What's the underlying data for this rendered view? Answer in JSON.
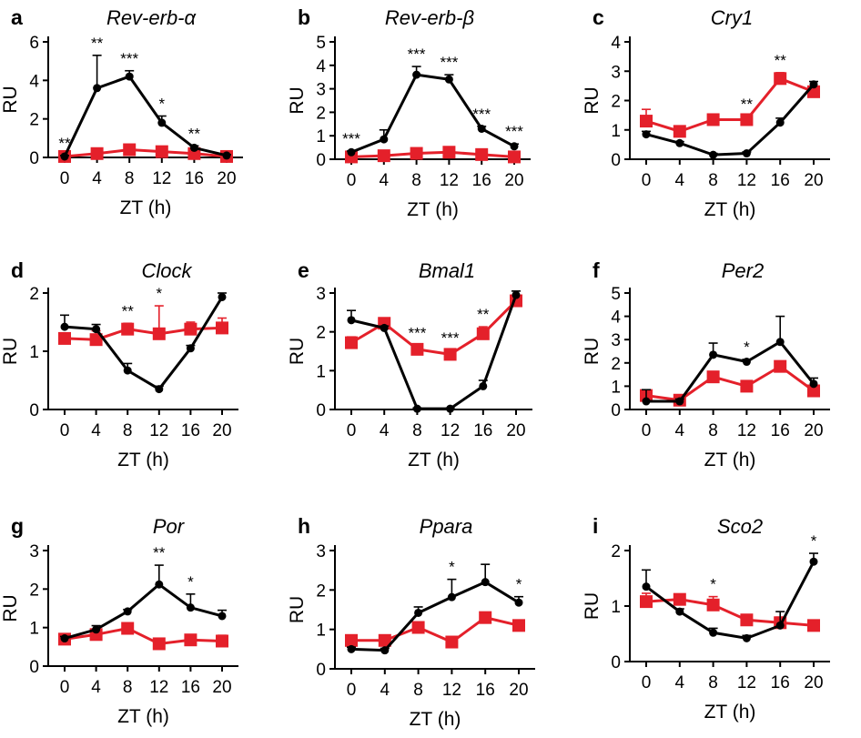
{
  "colors": {
    "ko": "#e4202a",
    "wt": "#000000"
  },
  "chart_data": [
    {
      "type": "line",
      "letter": "a",
      "title": "Rev-erb-α",
      "xlabel": "ZT (h)",
      "ylabel": "RU",
      "x": [
        0,
        4,
        8,
        12,
        16,
        20
      ],
      "ylim": [
        0,
        6
      ],
      "yticks": [
        0,
        2,
        4,
        6
      ],
      "series": [
        {
          "values": [
            0.05,
            3.6,
            4.2,
            1.8,
            0.5,
            0.1
          ],
          "errors": [
            0.05,
            1.7,
            0.3,
            0.35,
            0.1,
            0.05
          ]
        },
        {
          "values": [
            0.05,
            0.2,
            0.4,
            0.3,
            0.2,
            0.05
          ],
          "errors": [
            0.05,
            0.05,
            0.05,
            0.05,
            0.05,
            0.03
          ]
        }
      ],
      "significance": [
        "**",
        "**",
        "***",
        "*",
        "**",
        ""
      ]
    },
    {
      "type": "line",
      "letter": "b",
      "title": "Rev-erb-β",
      "xlabel": "ZT (h)",
      "ylabel": "RU",
      "x": [
        0,
        4,
        8,
        12,
        16,
        20
      ],
      "ylim": [
        0,
        5
      ],
      "yticks": [
        0,
        1,
        2,
        3,
        4,
        5
      ],
      "series": [
        {
          "values": [
            0.3,
            0.85,
            3.6,
            3.4,
            1.3,
            0.55
          ],
          "errors": [
            0.05,
            0.4,
            0.35,
            0.2,
            0.1,
            0.1
          ]
        },
        {
          "values": [
            0.1,
            0.15,
            0.25,
            0.3,
            0.2,
            0.1
          ],
          "errors": [
            0.05,
            0.05,
            0.05,
            0.05,
            0.05,
            0.05
          ]
        }
      ],
      "significance": [
        "***",
        "",
        "***",
        "***",
        "***",
        "***"
      ]
    },
    {
      "type": "line",
      "letter": "c",
      "title": "Cry1",
      "xlabel": "ZT (h)",
      "ylabel": "RU",
      "x": [
        0,
        4,
        8,
        12,
        16,
        20
      ],
      "ylim": [
        0,
        4
      ],
      "yticks": [
        0,
        1,
        2,
        3,
        4
      ],
      "series": [
        {
          "values": [
            0.85,
            0.55,
            0.15,
            0.2,
            1.25,
            2.55
          ],
          "errors": [
            0.1,
            0.05,
            0.05,
            0.05,
            0.15,
            0.1
          ]
        },
        {
          "values": [
            1.3,
            0.95,
            1.35,
            1.35,
            2.75,
            2.3
          ],
          "errors": [
            0.4,
            0.1,
            0.1,
            0.1,
            0.2,
            0.1
          ]
        }
      ],
      "significance": [
        "",
        "",
        "",
        "**",
        "**",
        ""
      ]
    },
    {
      "type": "line",
      "letter": "d",
      "title": "Clock",
      "xlabel": "ZT (h)",
      "ylabel": "RU",
      "x": [
        0,
        4,
        8,
        12,
        16,
        20
      ],
      "ylim": [
        0,
        2
      ],
      "yticks": [
        0,
        1,
        2
      ],
      "series": [
        {
          "values": [
            1.42,
            1.38,
            0.67,
            0.35,
            1.05,
            1.93
          ],
          "errors": [
            0.2,
            0.08,
            0.12,
            0.05,
            0.05,
            0.07
          ]
        },
        {
          "values": [
            1.22,
            1.2,
            1.38,
            1.3,
            1.38,
            1.4
          ],
          "errors": [
            0.08,
            0.15,
            0.1,
            0.48,
            0.12,
            0.17
          ]
        }
      ],
      "significance": [
        "",
        "",
        "**",
        "*",
        "",
        ""
      ]
    },
    {
      "type": "line",
      "letter": "e",
      "title": "Bmal1",
      "xlabel": "ZT (h)",
      "ylabel": "RU",
      "x": [
        0,
        4,
        8,
        12,
        16,
        20
      ],
      "ylim": [
        0,
        3
      ],
      "yticks": [
        0,
        1,
        2,
        3
      ],
      "series": [
        {
          "values": [
            2.3,
            2.1,
            0.02,
            0.02,
            0.6,
            2.95
          ],
          "errors": [
            0.25,
            0.05,
            0.02,
            0.02,
            0.15,
            0.1
          ]
        },
        {
          "values": [
            1.72,
            2.22,
            1.55,
            1.42,
            1.95,
            2.8
          ],
          "errors": [
            0.15,
            0.1,
            0.1,
            0.1,
            0.18,
            0.1
          ]
        }
      ],
      "significance": [
        "",
        "",
        "***",
        "***",
        "**",
        ""
      ]
    },
    {
      "type": "line",
      "letter": "f",
      "title": "Per2",
      "xlabel": "ZT (h)",
      "ylabel": "RU",
      "x": [
        0,
        4,
        8,
        12,
        16,
        20
      ],
      "ylim": [
        0,
        5
      ],
      "yticks": [
        0,
        1,
        2,
        3,
        4,
        5
      ],
      "series": [
        {
          "values": [
            0.35,
            0.35,
            2.35,
            2.05,
            2.9,
            1.1
          ],
          "errors": [
            0.5,
            0.1,
            0.5,
            0.1,
            1.1,
            0.25
          ]
        },
        {
          "values": [
            0.6,
            0.4,
            1.4,
            1.0,
            1.85,
            0.8
          ],
          "errors": [
            0.15,
            0.1,
            0.1,
            0.1,
            0.1,
            0.1
          ]
        }
      ],
      "significance": [
        "",
        "",
        "",
        "*",
        "",
        ""
      ]
    },
    {
      "type": "line",
      "letter": "g",
      "title": "Por",
      "xlabel": "ZT (h)",
      "ylabel": "RU",
      "x": [
        0,
        4,
        8,
        12,
        16,
        20
      ],
      "ylim": [
        0,
        3
      ],
      "yticks": [
        0,
        1,
        2,
        3
      ],
      "series": [
        {
          "values": [
            0.72,
            0.95,
            1.42,
            2.12,
            1.52,
            1.3
          ],
          "errors": [
            0.05,
            0.1,
            0.05,
            0.5,
            0.35,
            0.15
          ]
        },
        {
          "values": [
            0.7,
            0.82,
            0.98,
            0.58,
            0.68,
            0.65
          ],
          "errors": [
            0.05,
            0.1,
            0.1,
            0.05,
            0.05,
            0.15
          ]
        }
      ],
      "significance": [
        "",
        "",
        "",
        "**",
        "*",
        ""
      ]
    },
    {
      "type": "line",
      "letter": "h",
      "title": "Ppara",
      "xlabel": "ZT (h)",
      "ylabel": "RU",
      "x": [
        0,
        4,
        8,
        12,
        16,
        20
      ],
      "ylim": [
        0,
        3
      ],
      "yticks": [
        0,
        1,
        2,
        3
      ],
      "series": [
        {
          "values": [
            0.5,
            0.47,
            1.42,
            1.82,
            2.2,
            1.68
          ],
          "errors": [
            0.05,
            0.05,
            0.15,
            0.45,
            0.45,
            0.15
          ]
        },
        {
          "values": [
            0.72,
            0.72,
            1.05,
            0.68,
            1.3,
            1.1
          ],
          "errors": [
            0.05,
            0.05,
            0.05,
            0.05,
            0.05,
            0.1
          ]
        }
      ],
      "significance": [
        "",
        "",
        "",
        "*",
        "",
        "*"
      ]
    },
    {
      "type": "line",
      "letter": "i",
      "title": "Sco2",
      "xlabel": "ZT (h)",
      "ylabel": "RU",
      "x": [
        0,
        4,
        8,
        12,
        16,
        20
      ],
      "ylim": [
        0,
        2
      ],
      "yticks": [
        0,
        1,
        2
      ],
      "series": [
        {
          "values": [
            1.35,
            0.9,
            0.52,
            0.42,
            0.65,
            1.8
          ],
          "errors": [
            0.3,
            0.05,
            0.08,
            0.05,
            0.25,
            0.15
          ]
        },
        {
          "values": [
            1.08,
            1.12,
            1.02,
            0.75,
            0.7,
            0.65
          ],
          "errors": [
            0.15,
            0.08,
            0.15,
            0.08,
            0.1,
            0.05
          ]
        }
      ],
      "significance": [
        "",
        "",
        "*",
        "",
        "",
        "*"
      ]
    }
  ]
}
